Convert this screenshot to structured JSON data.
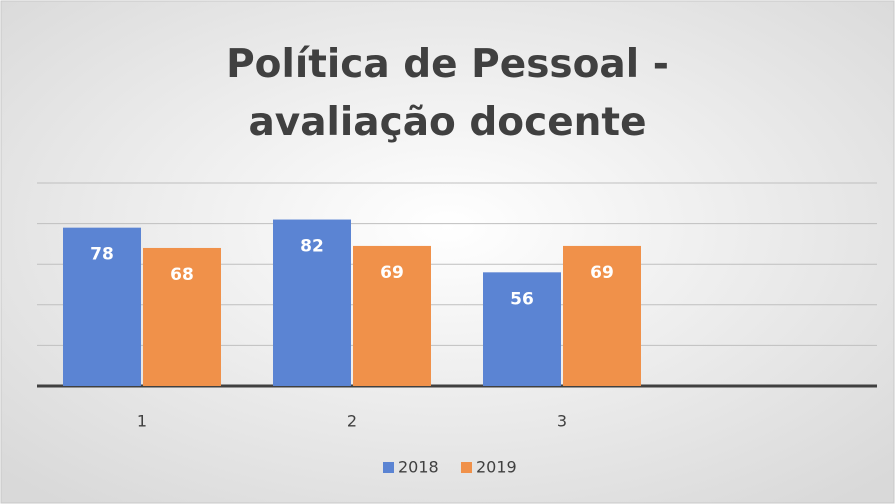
{
  "chart_data": {
    "type": "bar",
    "title": "Política de Pessoal - avaliação docente",
    "categories": [
      "1",
      "2",
      "3",
      null
    ],
    "series": [
      {
        "name": "2018",
        "color": "#5b84d3",
        "values": [
          78,
          82,
          56,
          null
        ]
      },
      {
        "name": "2019",
        "color": "#f0914a",
        "values": [
          68,
          69,
          69,
          null
        ]
      }
    ],
    "ylim": [
      0,
      100
    ],
    "yticks": [
      0,
      20,
      40,
      60,
      80,
      100
    ],
    "grid": true,
    "legend": "bottom"
  }
}
